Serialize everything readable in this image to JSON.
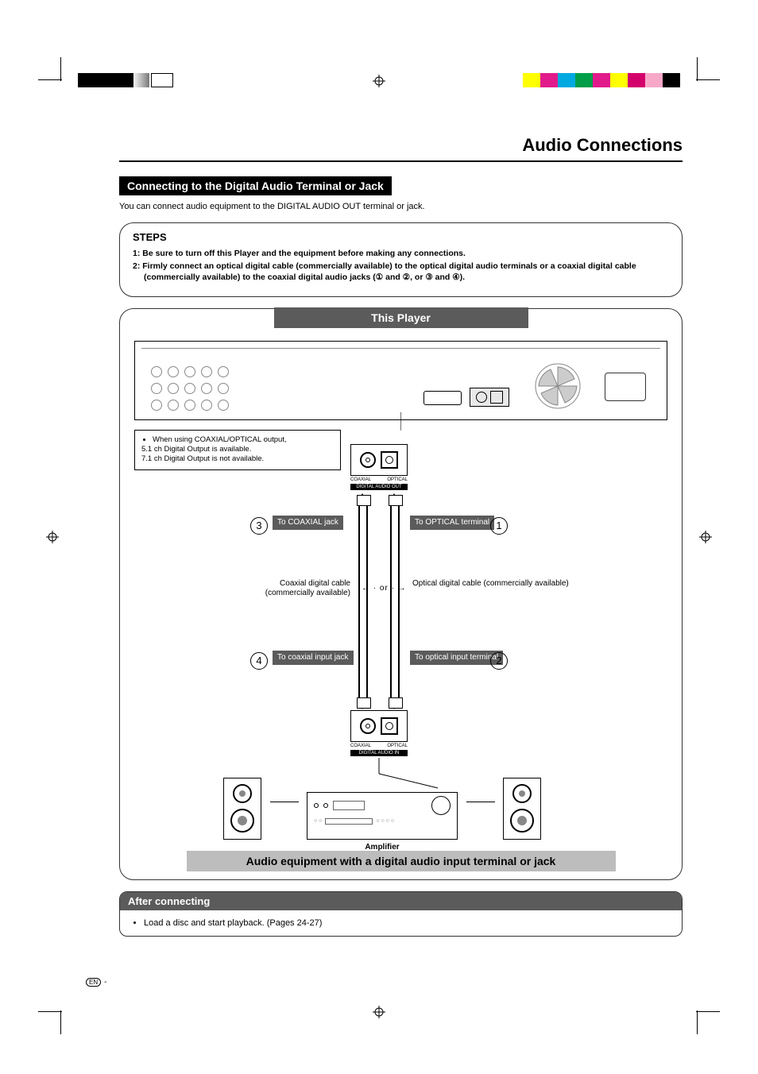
{
  "print_marks": {
    "colorbar_right": [
      "#ffff00",
      "#e11b8b",
      "#00a9e0",
      "#009e49",
      "#e11b8b",
      "#ffff00",
      "#d3006b",
      "#f7a8c9",
      "#000000"
    ],
    "gray_steps_left": [
      "#f2f2f2",
      "#e5e5e5",
      "#d8d8d8",
      "#cbcbcb",
      "#bfbfbf",
      "#b2b2b2",
      "#a5a5a5",
      "#989898",
      "#8b8b8b",
      "#7e7e7e",
      "#ffffff"
    ],
    "black_block": "#000000"
  },
  "page": {
    "title": "Audio Connections",
    "subheading": "Connecting to the Digital Audio Terminal or Jack",
    "intro": "You can connect audio equipment to the DIGITAL AUDIO OUT terminal or jack.",
    "steps_label": "STEPS",
    "steps": [
      "1: Be sure to turn off this Player and the equipment before making any connections.",
      "2: Firmly connect an optical digital cable (commercially available) to the optical digital audio terminals or a coaxial digital cable (commercially available) to the coaxial digital audio jacks (① and ②, or ③ and ④)."
    ],
    "diagram": {
      "this_player": "This Player",
      "note_bullets": [
        "When using COAXIAL/OPTICAL output,",
        "5.1 ch Digital Output is available.",
        "7.1 ch Digital Output is not available."
      ],
      "jack_labels": {
        "coaxial": "COAXIAL",
        "optical": "OPTICAL",
        "digital_out": "DIGITAL AUDIO OUT",
        "digital_in": "DIGITAL AUDIO IN"
      },
      "labels": {
        "to_optical_terminal": "To OPTICAL terminal",
        "to_optical_input": "To optical input terminal",
        "to_coaxial_jack": "To COAXIAL jack",
        "to_coaxial_input": "To coaxial input jack",
        "optical_cable": "Optical digital cable (commercially available)",
        "coaxial_cable": "Coaxial digital cable (commercially available)",
        "or": "or"
      },
      "circles": {
        "c1": "1",
        "c2": "2",
        "c3": "3",
        "c4": "4"
      },
      "amplifier": "Amplifier",
      "footer_bar": "Audio equipment with a digital audio input terminal or jack"
    },
    "after": {
      "heading": "After connecting",
      "body": "Load a disc and start playback. (Pages 24-27)"
    },
    "footer_en": "EN",
    "footer_dash": "-"
  },
  "style": {
    "accent_dark": "#5b5b5b",
    "rule_color": "#000000",
    "body_font_size": 11,
    "heading_font_size": 22
  }
}
